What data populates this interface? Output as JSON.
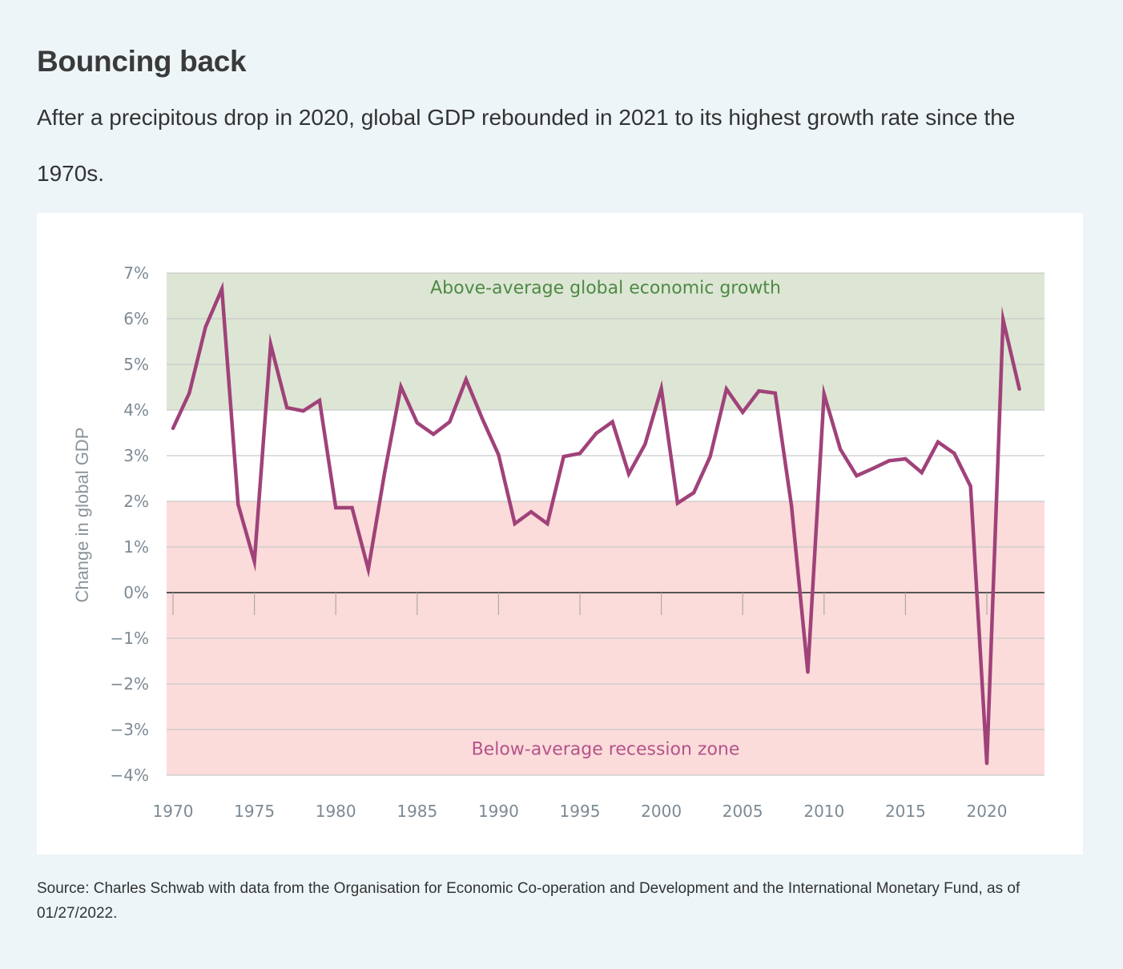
{
  "header": {
    "title": "Bouncing back",
    "subtitle": "After a precipitous drop in 2020, global GDP rebounded in 2021 to its highest growth rate since the 1970s."
  },
  "footer": {
    "source": "Source: Charles Schwab with data from the Organisation for Economic Co-operation and Development and the International Monetary Fund, as of 01/27/2022."
  },
  "colors": {
    "page_background": "#edf5f8",
    "card_background": "#ffffff",
    "line": "#a0427a",
    "above_zone": "#dde6d4",
    "below_zone": "#fbdcda",
    "gridline": "#c9c9c9",
    "zero_line": "#555555"
  },
  "chart_data": {
    "type": "line",
    "title": "Bouncing back",
    "xlabel": "",
    "ylabel": "Change in global GDP",
    "ylim": [
      -4,
      7
    ],
    "xlim": [
      1970,
      2023.5
    ],
    "grid": true,
    "y_ticks": [
      7,
      6,
      5,
      4,
      3,
      2,
      1,
      0,
      -1,
      -2,
      -3,
      -4
    ],
    "y_tick_labels": [
      "7%",
      "6%",
      "5%",
      "4%",
      "3%",
      "2%",
      "1%",
      "0%",
      "−1%",
      "−2%",
      "−3%",
      "−4%"
    ],
    "x_ticks": [
      1970,
      1975,
      1980,
      1985,
      1990,
      1995,
      2000,
      2005,
      2010,
      2015,
      2020
    ],
    "x_tick_labels": [
      "1970",
      "1975",
      "1980",
      "1985",
      "1990",
      "1995",
      "2000",
      "2005",
      "2010",
      "2015",
      "2020"
    ],
    "bands": [
      {
        "name": "above-average",
        "from": 4,
        "to": 7,
        "label": "Above-average global economic growth"
      },
      {
        "name": "below-average",
        "from": -4,
        "to": 2,
        "label": "Below-average recession zone"
      }
    ],
    "series": [
      {
        "name": "Change in global GDP (%)",
        "x": [
          1970,
          1971,
          1972,
          1973,
          1974,
          1975,
          1976,
          1977,
          1978,
          1979,
          1980,
          1981,
          1982,
          1983,
          1984,
          1985,
          1986,
          1987,
          1988,
          1989,
          1990,
          1991,
          1992,
          1993,
          1994,
          1995,
          1996,
          1997,
          1998,
          1999,
          2000,
          2001,
          2002,
          2003,
          2004,
          2005,
          2006,
          2007,
          2008,
          2009,
          2010,
          2011,
          2012,
          2013,
          2014,
          2015,
          2016,
          2017,
          2018,
          2019,
          2020,
          2021,
          2022
        ],
        "values": [
          3.6,
          4.37,
          5.82,
          6.65,
          1.93,
          0.68,
          5.44,
          4.05,
          3.98,
          4.21,
          1.86,
          1.86,
          0.51,
          2.63,
          4.51,
          3.72,
          3.47,
          3.74,
          4.67,
          3.81,
          3.02,
          1.51,
          1.77,
          1.51,
          2.98,
          3.05,
          3.49,
          3.74,
          2.6,
          3.25,
          4.47,
          1.96,
          2.19,
          2.98,
          4.46,
          3.95,
          4.42,
          4.37,
          1.89,
          -1.74,
          4.35,
          3.14,
          2.56,
          2.72,
          2.89,
          2.93,
          2.63,
          3.3,
          3.05,
          2.33,
          -3.74,
          5.98,
          4.46
        ]
      }
    ]
  }
}
